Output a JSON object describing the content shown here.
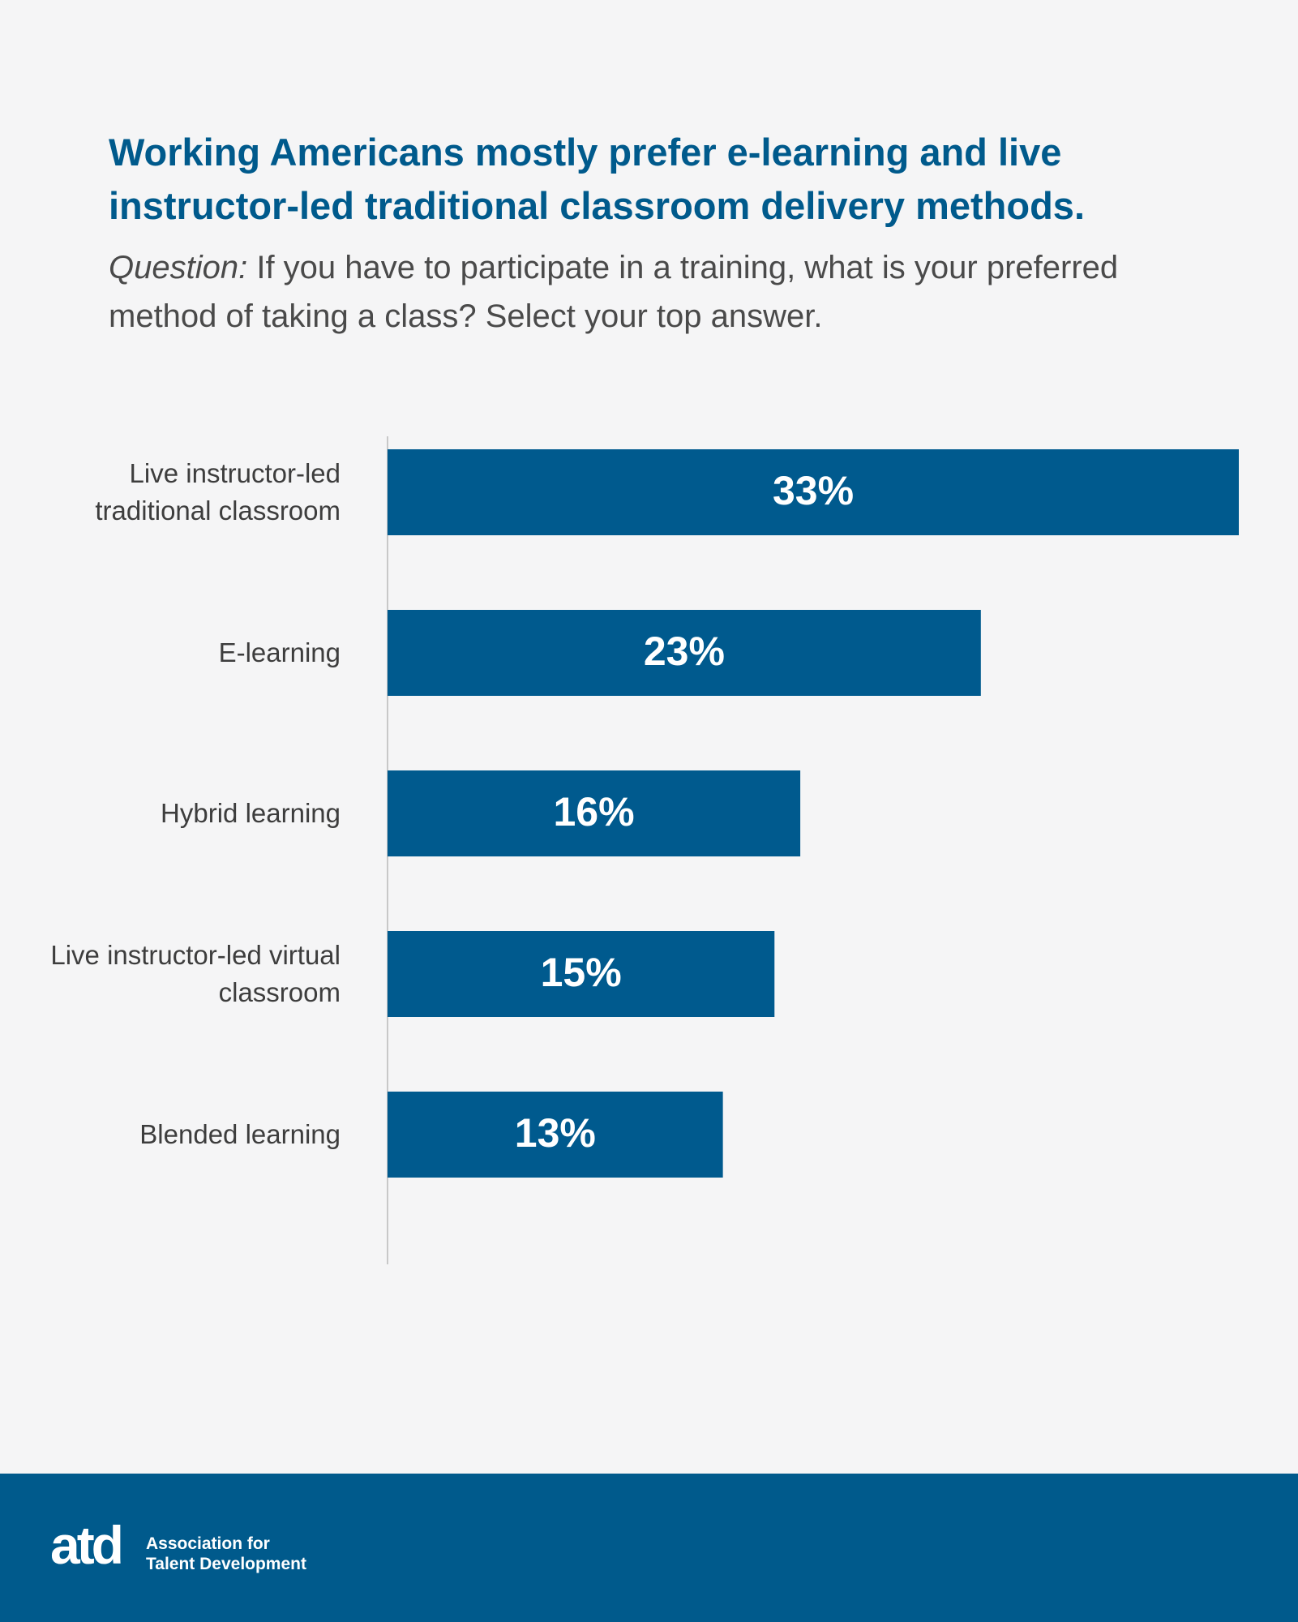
{
  "chart_data": {
    "type": "bar",
    "orientation": "horizontal",
    "title": "Working Americans mostly prefer e-learning and live instructor-led traditional classroom delivery methods.",
    "question_label": "Question:",
    "subtitle": "If you have to participate in a training, what is your preferred method of taking a class? Select your top answer.",
    "categories": [
      "Live instructor-led traditional classroom",
      "E-learning",
      "Hybrid learning",
      "Live instructor-led virtual classroom",
      "Blended learning"
    ],
    "values": [
      33,
      23,
      16,
      15,
      13
    ],
    "value_labels": [
      "33%",
      "23%",
      "16%",
      "15%",
      "13%"
    ],
    "color": "#005a8e"
  },
  "footer": {
    "logo": "atd",
    "org_line1": "Association for",
    "org_line2": "Talent Development"
  }
}
